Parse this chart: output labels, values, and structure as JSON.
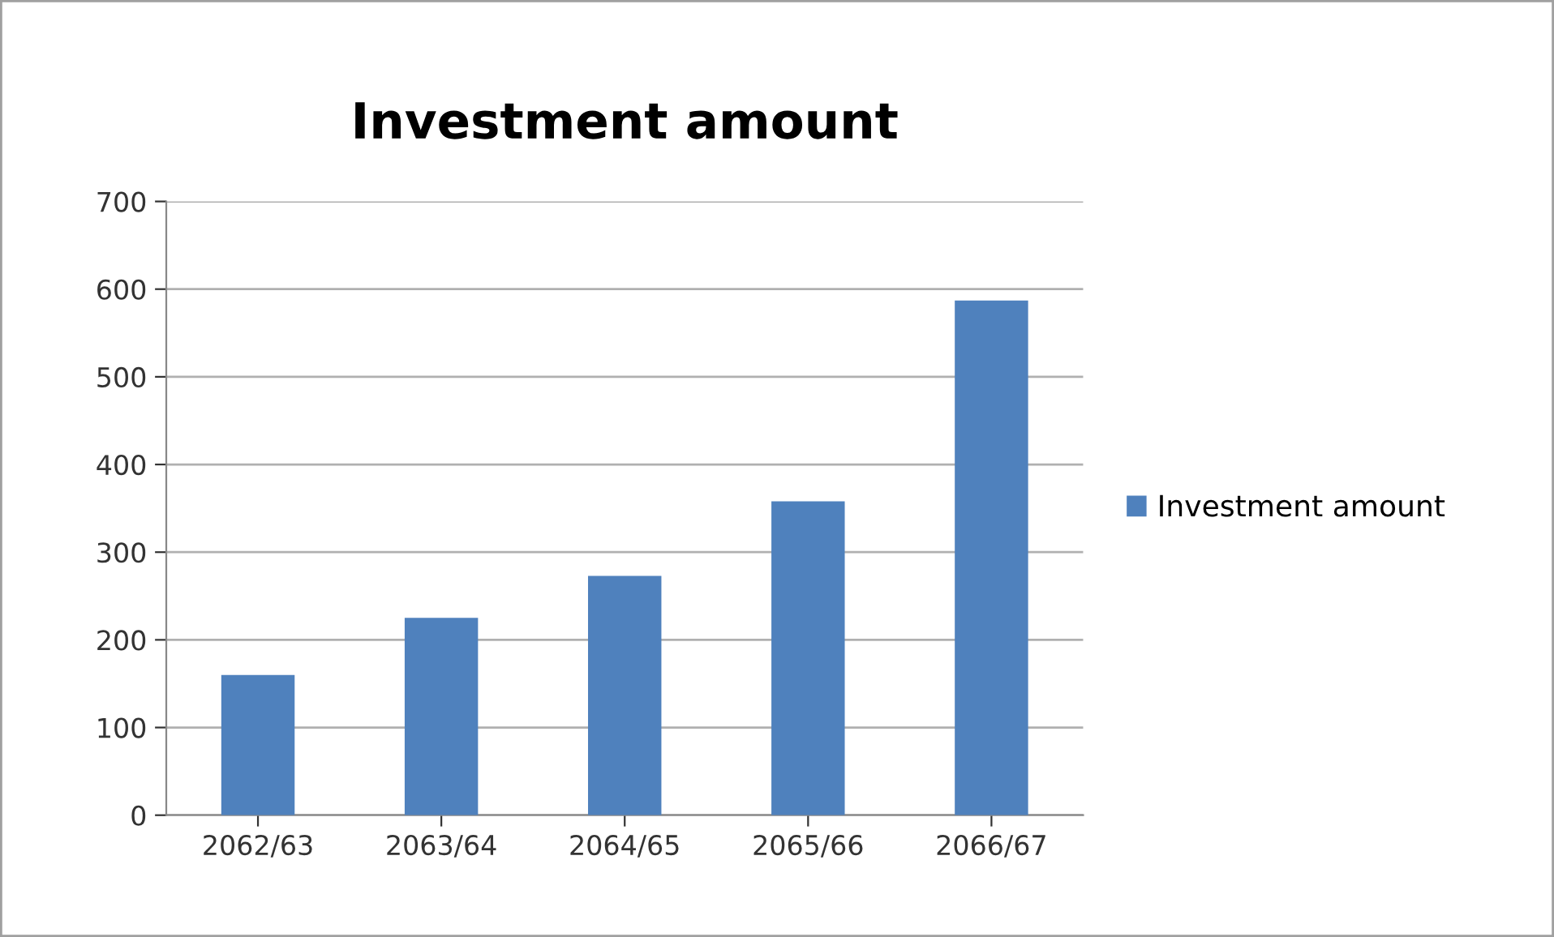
{
  "chart_data": {
    "type": "bar",
    "title": "Investment amount",
    "categories": [
      "2062/63",
      "2063/64",
      "2064/65",
      "2065/66",
      "2066/67"
    ],
    "series": [
      {
        "name": "Investment amount",
        "color": "#4f81bd",
        "values": [
          160,
          225,
          273,
          358,
          587
        ]
      }
    ],
    "ylim": [
      0,
      700
    ],
    "yticks": [
      0,
      100,
      200,
      300,
      400,
      500,
      600,
      700
    ],
    "grid": "y",
    "legend": "right"
  }
}
